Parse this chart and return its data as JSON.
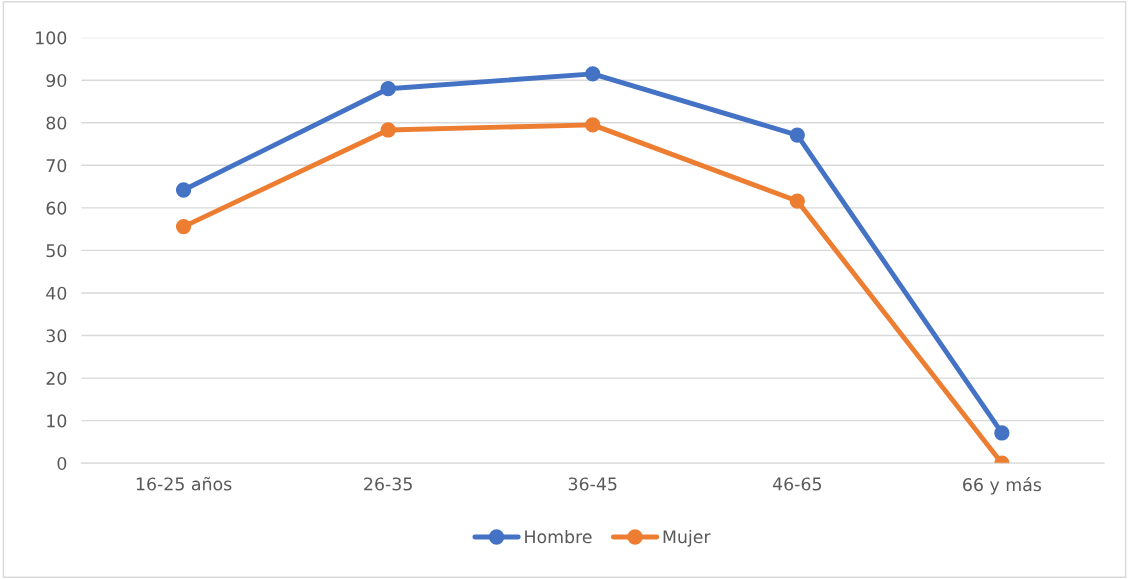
{
  "chart_data": {
    "type": "line",
    "categories": [
      "16-25 años",
      "26-35",
      "36-45",
      "46-65",
      "66 y más"
    ],
    "series": [
      {
        "name": "Hombre",
        "color": "#4472c4",
        "values": [
          64.2,
          88.0,
          91.5,
          77.1,
          7.1
        ]
      },
      {
        "name": "Mujer",
        "color": "#ed7d31",
        "values": [
          55.6,
          78.3,
          79.5,
          61.6,
          0
        ]
      }
    ],
    "ylim": [
      0,
      100
    ],
    "yticks": [
      0,
      10,
      20,
      30,
      40,
      50,
      60,
      70,
      80,
      90,
      100
    ],
    "grid": "y",
    "legend": "bottom",
    "marker": "circle",
    "line_style": "solid"
  }
}
